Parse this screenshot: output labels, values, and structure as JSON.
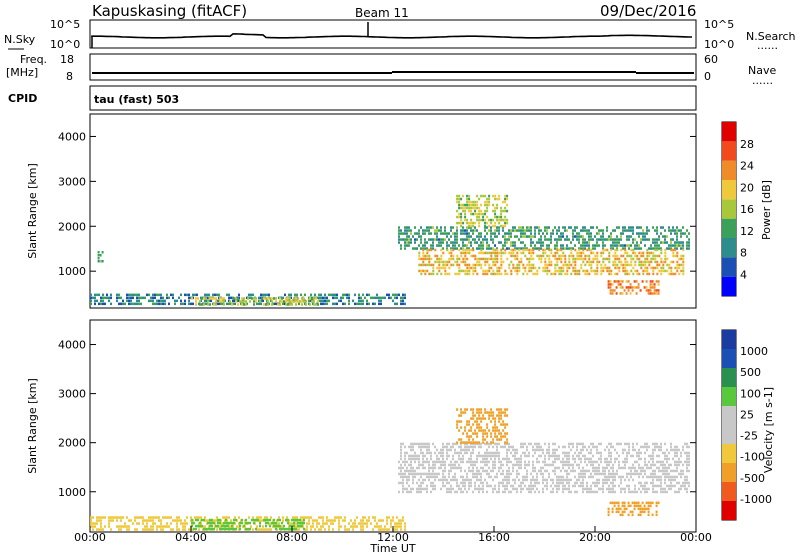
{
  "header": {
    "station": "Kapuskasing (fitACF)",
    "beam": "Beam 11",
    "date": "09/Dec/2016"
  },
  "strip_panels": {
    "nsky_label": "N.Sky",
    "nsky_ticks": [
      "10^5",
      "10^0"
    ],
    "nsearch_label": "N.Search",
    "nsearch_ticks": [
      "10^5",
      "10^0"
    ],
    "freq_label_line1": "Freq.",
    "freq_label_line2": "[MHz]",
    "freq_ticks": [
      "18",
      "8"
    ],
    "nave_label": "Nave",
    "nave_ticks": [
      "60",
      "0"
    ],
    "cpid_label": "CPID",
    "mode_text": "tau (fast) 503",
    "dots": "......"
  },
  "colors": {
    "power_scale": [
      "#0000ff",
      "#1a4fb3",
      "#2d8c8c",
      "#3aa05a",
      "#a8c83c",
      "#f0c83c",
      "#f08c28",
      "#f04a1e",
      "#e00000"
    ],
    "velocity_scale": [
      "#e00000",
      "#f05a1e",
      "#f0a028",
      "#f0c83c",
      "#c8c8c8",
      "#c8c8c8",
      "#5ac83c",
      "#2a9050",
      "#1a4fb3",
      "#1a3ca0"
    ],
    "ground_scatter": "#bebebe"
  },
  "chart_data": [
    {
      "type": "heatmap",
      "name": "power",
      "xlabel": "",
      "ylabel": "Slant Range [km]",
      "ylim": [
        180,
        4500
      ],
      "y_ticks": [
        "1000",
        "2000",
        "3000",
        "4000"
      ],
      "colorbar_label": "Power [dB]",
      "colorbar_ticks": [
        "4",
        "8",
        "12",
        "16",
        "20",
        "24",
        "28"
      ],
      "colorbar_range": [
        0,
        32
      ],
      "regions": [
        {
          "t_start": 0.0,
          "t_end": 12.5,
          "r_min": 250,
          "r_max": 500,
          "value": 9
        },
        {
          "t_start": 4.0,
          "t_end": 9.0,
          "r_min": 250,
          "r_max": 420,
          "value": 17
        },
        {
          "t_start": 0.3,
          "t_end": 0.5,
          "r_min": 1200,
          "r_max": 1450,
          "value": 11
        },
        {
          "t_start": 12.2,
          "t_end": 23.7,
          "r_min": 1500,
          "r_max": 2000,
          "value": 11
        },
        {
          "t_start": 13.0,
          "t_end": 23.5,
          "r_min": 900,
          "r_max": 1500,
          "value": 20
        },
        {
          "t_start": 14.5,
          "t_end": 16.5,
          "r_min": 2000,
          "r_max": 2700,
          "value": 17
        },
        {
          "t_start": 20.5,
          "t_end": 22.5,
          "r_min": 500,
          "r_max": 800,
          "value": 24
        }
      ]
    },
    {
      "type": "heatmap",
      "name": "velocity",
      "xlabel": "Time UT",
      "x_ticks": [
        "00:00",
        "04:00",
        "08:00",
        "12:00",
        "16:00",
        "20:00",
        "00:00"
      ],
      "xlim": [
        0,
        24
      ],
      "ylabel": "Slant Range [km]",
      "ylim": [
        180,
        4500
      ],
      "y_ticks": [
        "1000",
        "2000",
        "3000",
        "4000"
      ],
      "colorbar_label": "Velocity [m s-1]",
      "colorbar_ticks": [
        "-1000",
        "-500",
        "-100",
        "-25",
        "25",
        "100",
        "500",
        "1000"
      ],
      "regions": [
        {
          "t_start": 0.0,
          "t_end": 12.5,
          "r_min": 250,
          "r_max": 500,
          "value": -60
        },
        {
          "t_start": 4.0,
          "t_end": 8.5,
          "r_min": 250,
          "r_max": 450,
          "value": 60
        },
        {
          "t_start": 12.2,
          "t_end": 23.7,
          "r_min": 1000,
          "r_max": 2000,
          "value": 0
        },
        {
          "t_start": 14.5,
          "t_end": 16.5,
          "r_min": 2000,
          "r_max": 2700,
          "value": -150
        },
        {
          "t_start": 20.5,
          "t_end": 22.5,
          "r_min": 500,
          "r_max": 800,
          "value": -300
        }
      ]
    }
  ]
}
